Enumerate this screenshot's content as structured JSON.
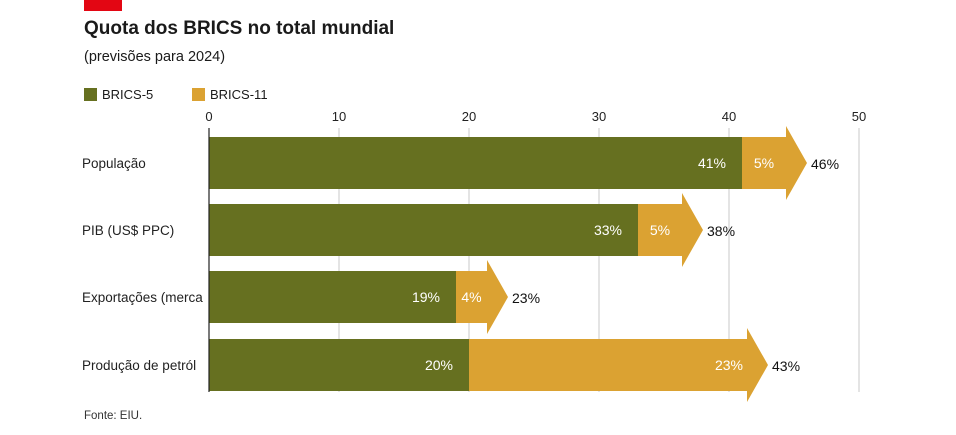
{
  "header": {
    "title": "Quota dos BRICS no total mundial",
    "subtitle": "(previsões para 2024)",
    "accent_color": "#e30613"
  },
  "footer": {
    "source": "Fonte: EIU."
  },
  "colors": {
    "brics5": "#667020",
    "brics11": "#dba232",
    "grid": "#c8c8c8",
    "axis": "#222222"
  },
  "chart_data": {
    "type": "bar",
    "orientation": "horizontal",
    "stacked": true,
    "title": "Quota dos BRICS no total mundial",
    "subtitle": "(previsões para 2024)",
    "xlim": [
      0,
      50
    ],
    "xticks": [
      0,
      10,
      20,
      30,
      40,
      50
    ],
    "grid": true,
    "legend_position": "top-left",
    "categories": [
      "População",
      "PIB (US$ PPC)",
      "Exportações (merca",
      "Produção de petról"
    ],
    "series": [
      {
        "name": "BRICS-5",
        "values": [
          41,
          33,
          19,
          20
        ],
        "labels": [
          "41%",
          "33%",
          "19%",
          "20%"
        ]
      },
      {
        "name": "BRICS-11",
        "values": [
          5,
          5,
          4,
          23
        ],
        "labels": [
          "5%",
          "5%",
          "4%",
          "23%"
        ]
      }
    ],
    "totals": [
      46,
      38,
      23,
      43
    ],
    "total_labels": [
      "46%",
      "38%",
      "23%",
      "43%"
    ],
    "source": "Fonte: EIU."
  }
}
